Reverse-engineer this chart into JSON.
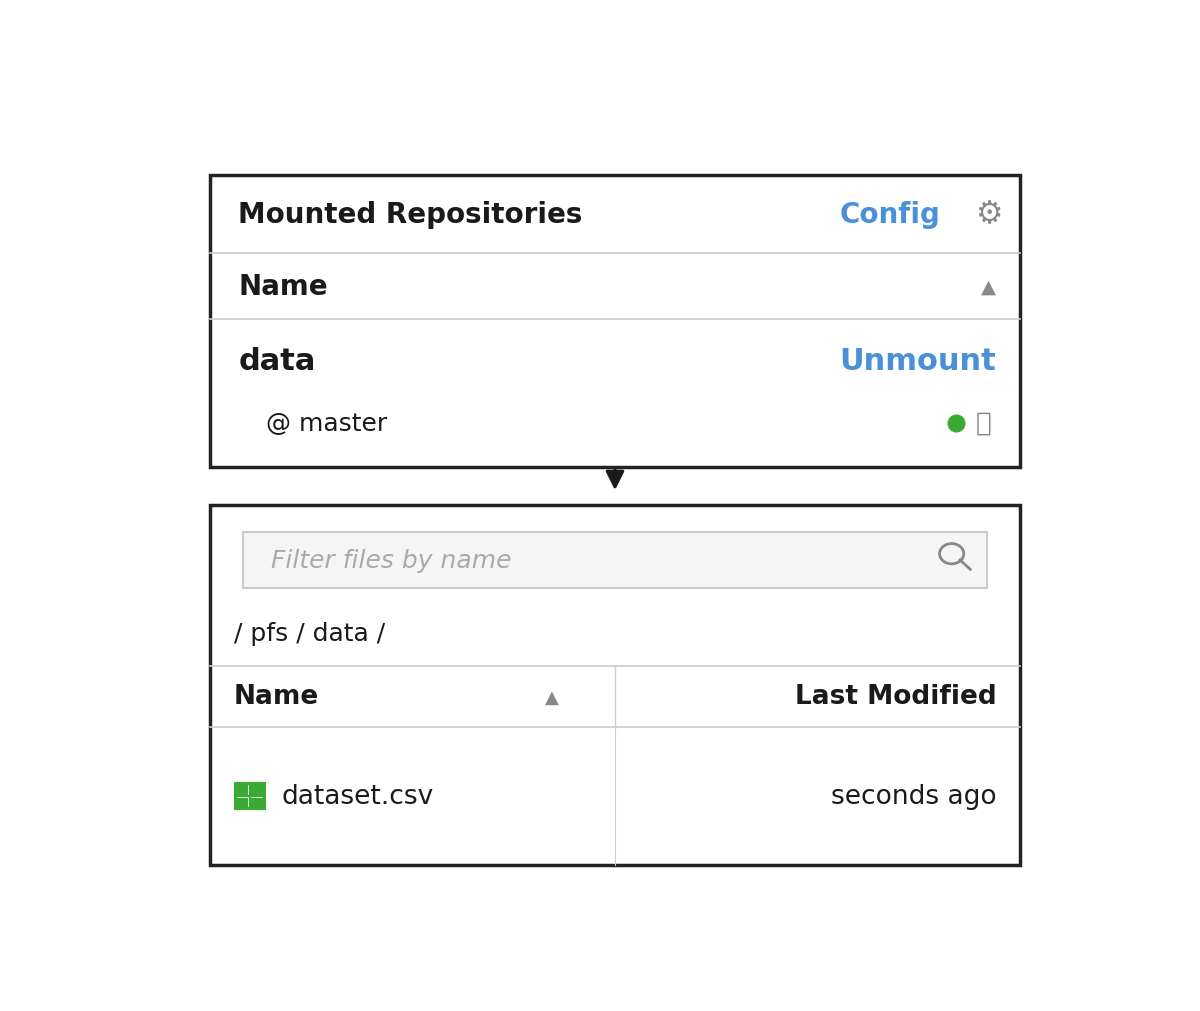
{
  "bg_color": "#ffffff",
  "border_color": "#222222",
  "divider_color": "#cccccc",
  "blue_color": "#4a90d9",
  "green_color": "#3aaa35",
  "gray_color": "#888888",
  "dark_color": "#1a1a1a",
  "search_bg": "#f5f5f5",
  "search_border": "#cccccc",
  "panel1": {
    "title": "Mounted Repositories",
    "config_text": "Config",
    "header_col": "Name",
    "repo_name": "data",
    "repo_branch": "@ master",
    "unmount_text": "Unmount"
  },
  "panel2": {
    "search_placeholder": "Filter files by name",
    "path": "/ pfs / data /",
    "col1": "Name",
    "col2": "Last Modified",
    "filename": "dataset.csv",
    "modified": "seconds ago"
  }
}
